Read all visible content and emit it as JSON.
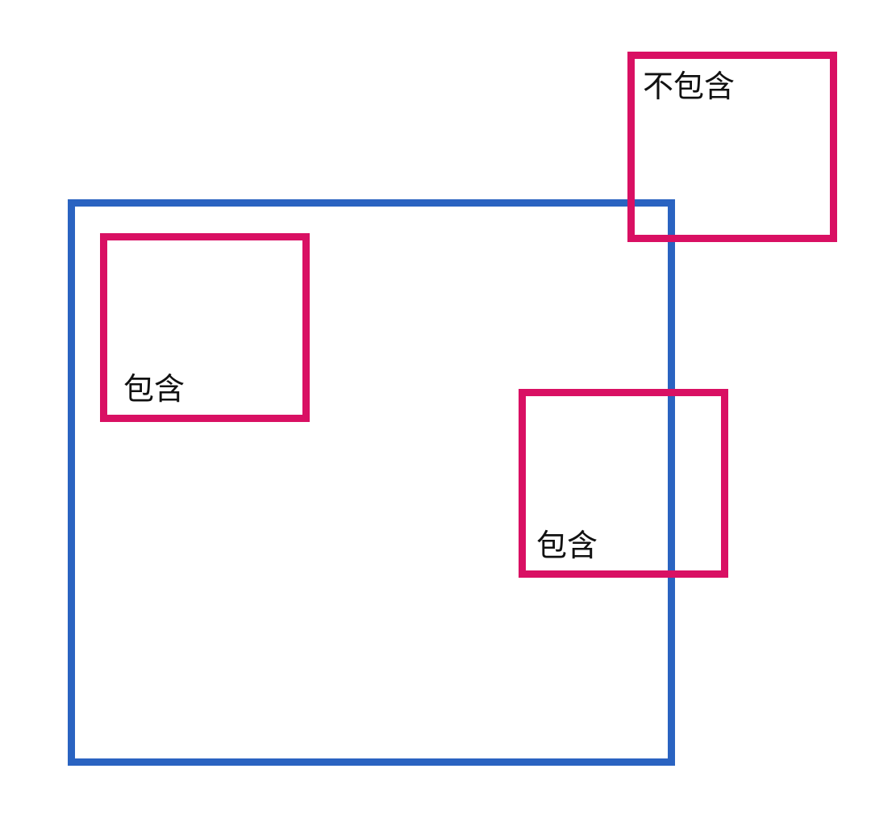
{
  "diagram": {
    "labels": {
      "left_inside": "包含",
      "right_overlap": "包含",
      "top_right_outside": "不包含"
    },
    "colors": {
      "outer_border": "#2a63c1",
      "inner_border": "#d91063",
      "background": "#ffffff",
      "text": "#111111"
    }
  }
}
